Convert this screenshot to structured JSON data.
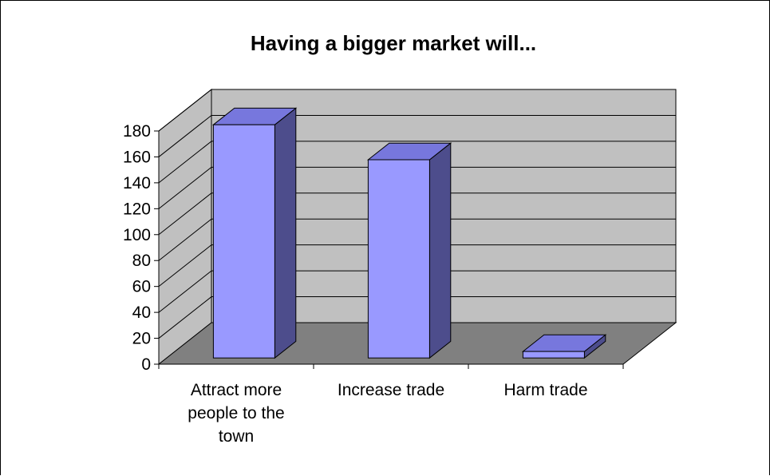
{
  "chart_data": {
    "type": "bar",
    "title": "Having a bigger market will...",
    "categories": [
      [
        "Attract more",
        "people to the",
        "town"
      ],
      [
        "Increase trade"
      ],
      [
        "Harm trade"
      ]
    ],
    "values": [
      180,
      153,
      5
    ],
    "ylim": [
      0,
      180
    ],
    "yticks": [
      0,
      20,
      40,
      60,
      80,
      100,
      120,
      140,
      160,
      180
    ],
    "grid": true,
    "legend": "none",
    "style": "3d",
    "colors": {
      "bar_front": "#9999ff",
      "bar_side": "#4d4d8c",
      "bar_top": "#7777dd",
      "back_wall": "#c0c0c0",
      "side_wall": "#c0c0c0",
      "floor": "#808080",
      "gridline": "#000000"
    }
  }
}
